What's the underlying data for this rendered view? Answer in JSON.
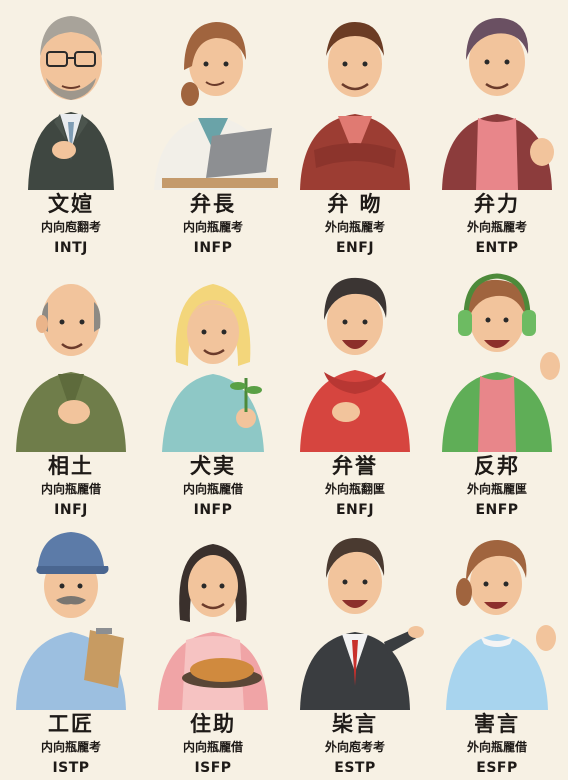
{
  "cards": [
    {
      "name": "文媗",
      "type_label": "内向庖翻考",
      "code": "INTJ",
      "figure": "older-man-glasses-suit"
    },
    {
      "name": "弁長",
      "type_label": "内向瓶龎考",
      "code": "INFP",
      "figure": "woman-laptop"
    },
    {
      "name": "弁 昒",
      "type_label": "外向瓶龎考",
      "code": "ENFJ",
      "figure": "man-red-jacket-arms-crossed"
    },
    {
      "name": "弁力",
      "type_label": "外向瓶龎考",
      "code": "ENTP",
      "figure": "man-maroon-jacket"
    },
    {
      "name": "相土",
      "type_label": "内向瓶龎借",
      "code": "INFJ",
      "figure": "bald-man-green-cardigan"
    },
    {
      "name": "犬実",
      "type_label": "内向瓶龎借",
      "code": "INFP",
      "figure": "blonde-woman-plant"
    },
    {
      "name": "弁誉",
      "type_label": "外向瓶翻匩",
      "code": "ENFJ",
      "figure": "boy-red-hoodie"
    },
    {
      "name": "反邦",
      "type_label": "外向瓶龎匩",
      "code": "ENFP",
      "figure": "boy-headphones-waving"
    },
    {
      "name": "工匠",
      "type_label": "内向瓶龎考",
      "code": "ISTP",
      "figure": "worker-cap-clipboard"
    },
    {
      "name": "住助",
      "type_label": "内向瓶龎借",
      "code": "ISFP",
      "figure": "woman-apron-pie"
    },
    {
      "name": "枈言",
      "type_label": "外向庖考考",
      "code": "ESTP",
      "figure": "man-suit-pointing"
    },
    {
      "name": "害言",
      "type_label": "外向瓶龎借",
      "code": "ESFP",
      "figure": "woman-ponytail-waving"
    }
  ],
  "colors": {
    "background": "#f7f1e4",
    "text": "#1e1a17",
    "skin": "#f2c49c"
  }
}
